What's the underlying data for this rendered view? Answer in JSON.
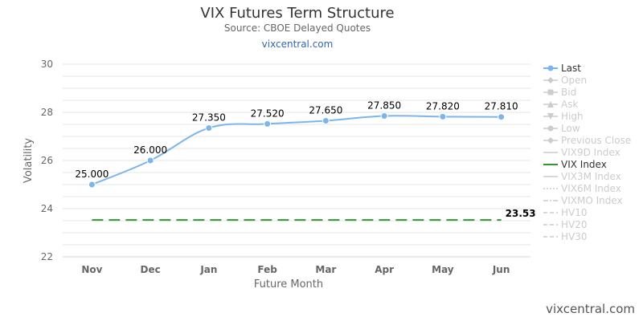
{
  "header": {
    "title": "VIX Futures Term Structure",
    "subtitle": "Source: CBOE Delayed Quotes",
    "site_link": "vixcentral.com"
  },
  "credit": "vixcentral.com",
  "colors": {
    "last": "#7cb5ec",
    "vix_index": "#2e9a2e",
    "grid": "#e6e6e6",
    "inactive_legend": "#cccccc"
  },
  "legend": [
    {
      "label": "Last",
      "active": true,
      "symbol": "line-circle"
    },
    {
      "label": "Open",
      "active": false,
      "symbol": "line-diamond"
    },
    {
      "label": "Bid",
      "active": false,
      "symbol": "line-square"
    },
    {
      "label": "Ask",
      "active": false,
      "symbol": "line-triangle"
    },
    {
      "label": "High",
      "active": false,
      "symbol": "line-triangle-down"
    },
    {
      "label": "Low",
      "active": false,
      "symbol": "line-circle"
    },
    {
      "label": "Previous Close",
      "active": false,
      "symbol": "line-diamond"
    },
    {
      "label": "VIX9D Index",
      "active": false,
      "symbol": "line"
    },
    {
      "label": "VIX Index",
      "active": true,
      "symbol": "line"
    },
    {
      "label": "VIX3M Index",
      "active": false,
      "symbol": "line"
    },
    {
      "label": "VIX6M Index",
      "active": false,
      "symbol": "dotted"
    },
    {
      "label": "VIXMO Index",
      "active": false,
      "symbol": "dashdot"
    },
    {
      "label": "HV10",
      "active": false,
      "symbol": "dashed"
    },
    {
      "label": "HV20",
      "active": false,
      "symbol": "dashed"
    },
    {
      "label": "HV30",
      "active": false,
      "symbol": "dashed"
    }
  ],
  "chart_data": {
    "type": "line",
    "title": "VIX Futures Term Structure",
    "subtitle": "Source: CBOE Delayed Quotes",
    "xlabel": "Future Month",
    "ylabel": "Volatility",
    "categories": [
      "Nov",
      "Dec",
      "Jan",
      "Feb",
      "Mar",
      "Apr",
      "May",
      "Jun"
    ],
    "ylim": [
      22,
      30
    ],
    "yticks": [
      22,
      24,
      26,
      28,
      30
    ],
    "grid": true,
    "legend_position": "right",
    "series": [
      {
        "name": "Last",
        "values": [
          25.0,
          26.0,
          27.35,
          27.52,
          27.65,
          27.85,
          27.82,
          27.81
        ],
        "labels": [
          "25.000",
          "26.000",
          "27.350",
          "27.520",
          "27.650",
          "27.850",
          "27.820",
          "27.810"
        ],
        "style": "smooth-line-markers"
      },
      {
        "name": "VIX Index",
        "values": [
          23.53,
          23.53,
          23.53,
          23.53,
          23.53,
          23.53,
          23.53,
          23.53
        ],
        "end_label": "23.53",
        "style": "dashed"
      }
    ]
  }
}
